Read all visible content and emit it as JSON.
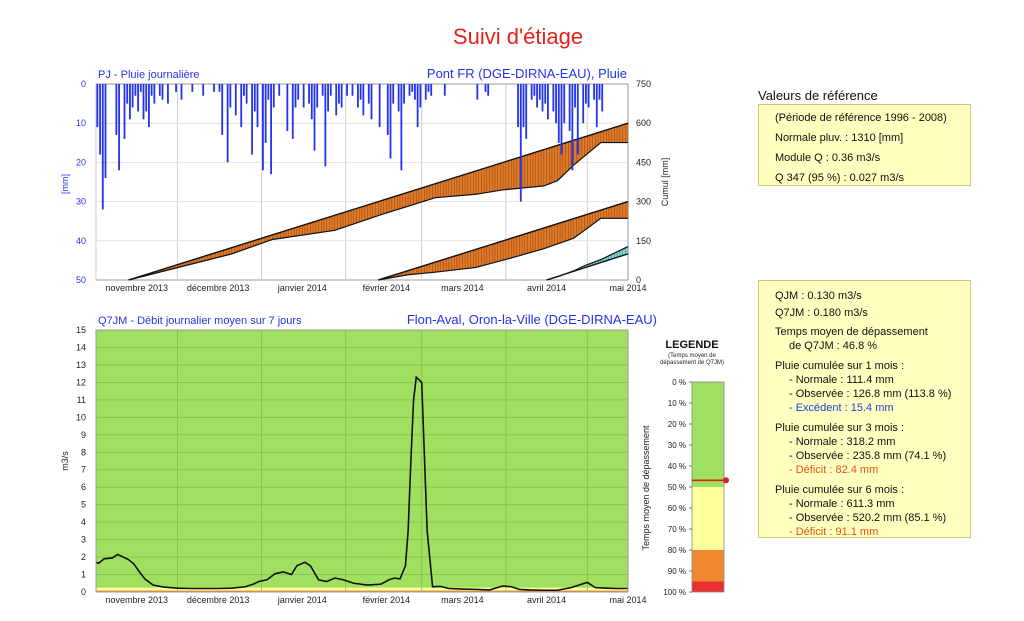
{
  "page_title": "Suivi d'étiage",
  "colors": {
    "title": "#e8211c",
    "rain_blue": "#2233ee",
    "cumul_fill": "#e07a28",
    "cumul_excess": "#6fe0e8",
    "green": "#9fe060",
    "yellow": "#ffff9c",
    "orange": "#f08830",
    "red": "#e83030",
    "panel_bg": "#ffffc0"
  },
  "reference": {
    "title": "Valeurs de référence",
    "period": "(Période de référence 1996 - 2008)",
    "normale": "Normale pluv. : 1310 [mm]",
    "module": "Module Q : 0.36 m3/s",
    "q347": "Q 347 (95 %) : 0.027 m3/s"
  },
  "stats": {
    "qjm": "QJM : 0.130 m3/s",
    "q7jm": "Q7JM : 0.180 m3/s",
    "temps_l1": "Temps moyen de dépassement",
    "temps_l2": "de Q7JM : 46.8 %",
    "m1": {
      "title": "Pluie cumulée sur 1 mois :",
      "normale": "- Normale : 111.4 mm",
      "observee": "- Observée : 126.8 mm (113.8 %)",
      "ecart": "- Excédent : 15.4 mm"
    },
    "m3": {
      "title": "Pluie cumulée sur 3 mois :",
      "normale": "- Normale : 318.2 mm",
      "observee": "- Observée : 235.8 mm (74.1 %)",
      "ecart": "- Déficit : 82.4 mm"
    },
    "m6": {
      "title": "Pluie cumulée sur 6 mois :",
      "normale": "- Normale : 611.3 mm",
      "observee": "- Observée : 520.2 mm (85.1 %)",
      "ecart": "- Déficit : 91.1 mm"
    }
  },
  "legend": {
    "title": "LEGENDE",
    "sub1": "(Temps moyen de",
    "sub2": "dépassement de Q7JM)",
    "axis_label": "Temps moyen de dépassement",
    "ticks": [
      "0 %",
      "10 %",
      "20 %",
      "30 %",
      "40 %",
      "50 %",
      "60 %",
      "70 %",
      "80 %",
      "90 %",
      "100 %"
    ],
    "bands": [
      {
        "from": 0,
        "to": 50,
        "color": "#9fe060"
      },
      {
        "from": 50,
        "to": 80,
        "color": "#ffff9c"
      },
      {
        "from": 80,
        "to": 95,
        "color": "#f08830"
      },
      {
        "from": 95,
        "to": 100,
        "color": "#e83030"
      }
    ],
    "marker": 46.8
  },
  "chart_data": [
    {
      "type": "bar",
      "title_left": "PJ - Pluie journalière",
      "title_right": "Pont FR (DGE-DIRNA-EAU), Pluie",
      "ylabel": "[mm]",
      "ylabel_right": "Cumul [mm]",
      "ylim": [
        0,
        50
      ],
      "ylim_right": [
        0,
        750
      ],
      "y_ticks": [
        0,
        10,
        20,
        30,
        40,
        50
      ],
      "y_ticks_right": [
        0,
        150,
        300,
        450,
        600,
        750
      ],
      "months": [
        "novembre 2013",
        "décembre 2013",
        "janvier 2014",
        "février 2014",
        "mars 2014",
        "avril 2014",
        "mai 2014"
      ],
      "x_range_days": [
        0,
        196
      ],
      "rain": [
        [
          0,
          11
        ],
        [
          1,
          18
        ],
        [
          2,
          32
        ],
        [
          3,
          24
        ],
        [
          7,
          13
        ],
        [
          8,
          22
        ],
        [
          10,
          14
        ],
        [
          11,
          5
        ],
        [
          12,
          9
        ],
        [
          13,
          6
        ],
        [
          14,
          3
        ],
        [
          15,
          7
        ],
        [
          16,
          2
        ],
        [
          17,
          9
        ],
        [
          18,
          7
        ],
        [
          19,
          11
        ],
        [
          20,
          3
        ],
        [
          21,
          5
        ],
        [
          23,
          3
        ],
        [
          24,
          4
        ],
        [
          26,
          5
        ],
        [
          29,
          2
        ],
        [
          31,
          4
        ],
        [
          35,
          2
        ],
        [
          39,
          3
        ],
        [
          43,
          2
        ],
        [
          45,
          2
        ],
        [
          46,
          13
        ],
        [
          48,
          20
        ],
        [
          49,
          6
        ],
        [
          51,
          8
        ],
        [
          53,
          11
        ],
        [
          54,
          3
        ],
        [
          55,
          5
        ],
        [
          57,
          18
        ],
        [
          58,
          7
        ],
        [
          59,
          11
        ],
        [
          61,
          22
        ],
        [
          62,
          15
        ],
        [
          63,
          4
        ],
        [
          64,
          23
        ],
        [
          65,
          6
        ],
        [
          67,
          3
        ],
        [
          70,
          12
        ],
        [
          72,
          14
        ],
        [
          73,
          6
        ],
        [
          74,
          4
        ],
        [
          76,
          6
        ],
        [
          78,
          5
        ],
        [
          79,
          9
        ],
        [
          80,
          17
        ],
        [
          81,
          6
        ],
        [
          83,
          3
        ],
        [
          84,
          21
        ],
        [
          85,
          7
        ],
        [
          86,
          3
        ],
        [
          88,
          8
        ],
        [
          89,
          5
        ],
        [
          90,
          6
        ],
        [
          92,
          3
        ],
        [
          94,
          3
        ],
        [
          96,
          6
        ],
        [
          97,
          4
        ],
        [
          98,
          8
        ],
        [
          100,
          5
        ],
        [
          101,
          9
        ],
        [
          104,
          11
        ],
        [
          107,
          13
        ],
        [
          108,
          19
        ],
        [
          109,
          5
        ],
        [
          111,
          7
        ],
        [
          112,
          22
        ],
        [
          113,
          5
        ],
        [
          115,
          3
        ],
        [
          116,
          2
        ],
        [
          117,
          4
        ],
        [
          118,
          11
        ],
        [
          119,
          6
        ],
        [
          121,
          4
        ],
        [
          122,
          2
        ],
        [
          123,
          3
        ],
        [
          128,
          3
        ],
        [
          140,
          4
        ],
        [
          143,
          2
        ],
        [
          144,
          3
        ],
        [
          155,
          11
        ],
        [
          156,
          30
        ],
        [
          157,
          11
        ],
        [
          158,
          14
        ],
        [
          160,
          4
        ],
        [
          161,
          3
        ],
        [
          162,
          6
        ],
        [
          163,
          4
        ],
        [
          164,
          7
        ],
        [
          165,
          5
        ],
        [
          166,
          9
        ],
        [
          168,
          7
        ],
        [
          169,
          10
        ],
        [
          170,
          15
        ],
        [
          171,
          18
        ],
        [
          172,
          10
        ],
        [
          174,
          12
        ],
        [
          175,
          22
        ],
        [
          176,
          6
        ],
        [
          177,
          18
        ],
        [
          179,
          10
        ],
        [
          180,
          5
        ],
        [
          181,
          6
        ],
        [
          183,
          4
        ],
        [
          184,
          11
        ],
        [
          185,
          4
        ],
        [
          186,
          7
        ]
      ],
      "cumul_series": [
        {
          "normal": [
            [
              12,
              0
            ],
            [
              196,
              600
            ]
          ],
          "observed": [
            [
              12,
              0
            ],
            [
              50,
              100
            ],
            [
              65,
              155
            ],
            [
              88,
              190
            ],
            [
              105,
              250
            ],
            [
              118,
              292
            ],
            [
              125,
              315
            ],
            [
              140,
              328
            ],
            [
              150,
              345
            ],
            [
              165,
              360
            ],
            [
              170,
              380
            ],
            [
              176,
              440
            ],
            [
              186,
              526
            ],
            [
              196,
              526
            ]
          ]
        },
        {
          "normal": [
            [
              104,
              0
            ],
            [
              196,
              300
            ]
          ],
          "observed": [
            [
              104,
              0
            ],
            [
              115,
              20
            ],
            [
              125,
              30
            ],
            [
              140,
              48
            ],
            [
              155,
              90
            ],
            [
              165,
              120
            ],
            [
              176,
              160
            ],
            [
              186,
              236
            ],
            [
              196,
              236
            ]
          ]
        },
        {
          "normal": [
            [
              166,
              0
            ],
            [
              196,
              100
            ]
          ],
          "observed": [
            [
              166,
              0
            ],
            [
              170,
              12
            ],
            [
              176,
              35
            ],
            [
              180,
              55
            ],
            [
              186,
              78
            ],
            [
              196,
              128
            ]
          ]
        }
      ]
    },
    {
      "type": "line",
      "title_left": "Q7JM - Débit journalier moyen sur 7 jours",
      "title_right": "Flon-Aval, Oron-la-Ville (DGE-DIRNA-EAU)",
      "ylabel": "m3/s",
      "ylim": [
        0,
        15
      ],
      "y_ticks": [
        0,
        1,
        2,
        3,
        4,
        5,
        6,
        7,
        8,
        9,
        10,
        11,
        12,
        13,
        14,
        15
      ],
      "months": [
        "novembre 2013",
        "décembre 2013",
        "janvier 2014",
        "février 2014",
        "mars 2014",
        "avril 2014",
        "mai 2014"
      ],
      "x_range_days": [
        0,
        196
      ],
      "q7jm": [
        [
          0,
          1.7
        ],
        [
          1,
          1.65
        ],
        [
          3,
          1.9
        ],
        [
          6,
          1.95
        ],
        [
          8,
          2.15
        ],
        [
          10,
          2.0
        ],
        [
          12,
          1.85
        ],
        [
          14,
          1.6
        ],
        [
          16,
          1.15
        ],
        [
          18,
          0.75
        ],
        [
          21,
          0.4
        ],
        [
          25,
          0.28
        ],
        [
          30,
          0.22
        ],
        [
          35,
          0.2
        ],
        [
          40,
          0.2
        ],
        [
          45,
          0.2
        ],
        [
          50,
          0.22
        ],
        [
          55,
          0.3
        ],
        [
          58,
          0.45
        ],
        [
          60,
          0.6
        ],
        [
          63,
          0.7
        ],
        [
          66,
          1.05
        ],
        [
          69,
          1.15
        ],
        [
          72,
          1.0
        ],
        [
          74,
          1.5
        ],
        [
          77,
          1.7
        ],
        [
          79,
          1.5
        ],
        [
          82,
          0.7
        ],
        [
          85,
          0.6
        ],
        [
          88,
          0.8
        ],
        [
          91,
          0.7
        ],
        [
          95,
          0.5
        ],
        [
          100,
          0.4
        ],
        [
          105,
          0.45
        ],
        [
          108,
          0.7
        ],
        [
          110,
          0.8
        ],
        [
          112,
          0.75
        ],
        [
          114,
          1.5
        ],
        [
          115,
          3.5
        ],
        [
          116,
          7.5
        ],
        [
          117,
          11.0
        ],
        [
          118,
          12.3
        ],
        [
          120,
          12.0
        ],
        [
          122,
          3.5
        ],
        [
          124,
          0.3
        ],
        [
          127,
          0.32
        ],
        [
          130,
          0.2
        ],
        [
          135,
          0.17
        ],
        [
          140,
          0.15
        ],
        [
          145,
          0.12
        ],
        [
          150,
          0.35
        ],
        [
          153,
          0.3
        ],
        [
          156,
          0.15
        ],
        [
          160,
          0.12
        ],
        [
          165,
          0.1
        ],
        [
          170,
          0.1
        ],
        [
          175,
          0.25
        ],
        [
          178,
          0.4
        ],
        [
          181,
          0.55
        ],
        [
          184,
          0.25
        ],
        [
          188,
          0.22
        ],
        [
          192,
          0.2
        ],
        [
          196,
          0.2
        ]
      ],
      "threshold_bands": {
        "red": 0.027,
        "orange": 0.08,
        "yellow": 0.25
      }
    }
  ]
}
